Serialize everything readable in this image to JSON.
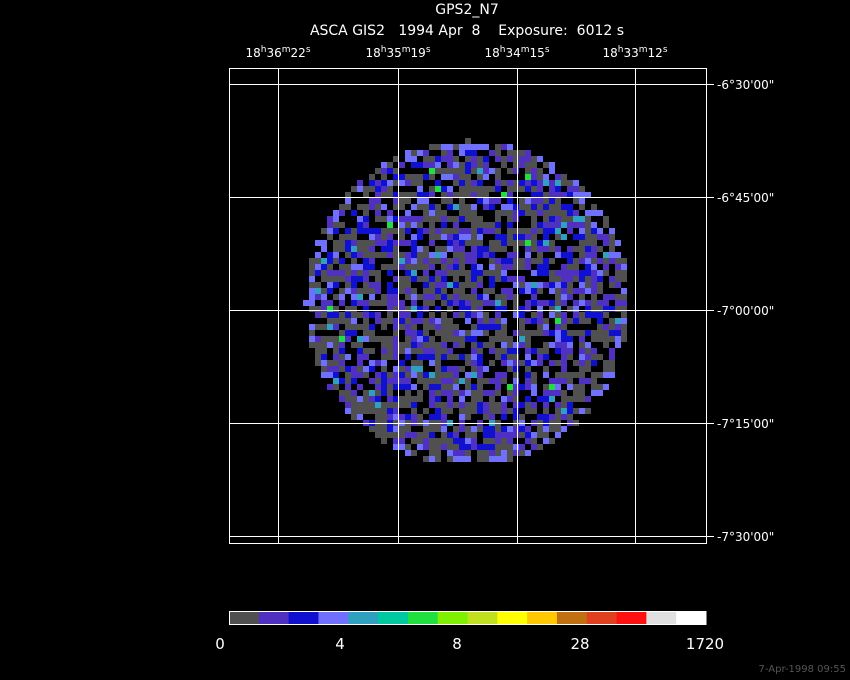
{
  "header": {
    "title": "GPS2_N7",
    "subtitle": "ASCA GIS2   1994 Apr  8    Exposure:  6012 s"
  },
  "ra_labels": [
    [
      "18",
      "h",
      "36",
      "m",
      "22",
      "s"
    ],
    [
      "18",
      "h",
      "35",
      "m",
      "19",
      "s"
    ],
    [
      "18",
      "h",
      "34",
      "m",
      "15",
      "s"
    ],
    [
      "18",
      "h",
      "33",
      "m",
      "12",
      "s"
    ]
  ],
  "dec_labels": [
    "-6°30'00\"",
    "-6°45'00\"",
    "-7°00'00\"",
    "-7°15'00\"",
    "-7°30'00\""
  ],
  "colorbar": {
    "colors": [
      "#505050",
      "#5030c0",
      "#1010d0",
      "#7070ff",
      "#30a0c0",
      "#00c8a0",
      "#20e040",
      "#80f000",
      "#c0e020",
      "#ffff00",
      "#ffc800",
      "#c07010",
      "#e04020",
      "#ff1010",
      "#e0e0e0",
      "#ffffff"
    ],
    "ticks": [
      0,
      4,
      8,
      28,
      1720
    ]
  },
  "footer": {
    "timestamp": "7-Apr-1998 09:55"
  }
}
